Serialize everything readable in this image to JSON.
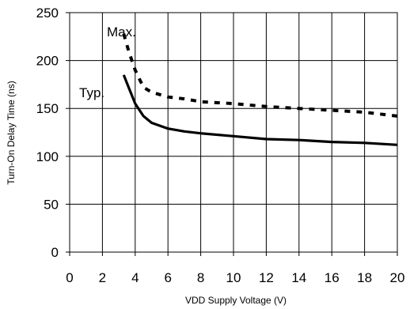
{
  "chart_data": {
    "type": "line",
    "xlabel": "VDD Supply Voltage (V)",
    "ylabel": "Turn-On Delay Time (ns)",
    "xlim": [
      0,
      20
    ],
    "ylim": [
      0,
      250
    ],
    "x_ticks": [
      "0",
      "2",
      "4",
      "6",
      "8",
      "10",
      "12",
      "14",
      "16",
      "18",
      "20"
    ],
    "y_ticks": [
      "0",
      "50",
      "100",
      "150",
      "200",
      "250"
    ],
    "grid": true,
    "legend": "none",
    "annotations": [
      "Max.",
      "Typ."
    ],
    "series": [
      {
        "name": "Max.",
        "style": "dashed",
        "x": [
          3.3,
          3.6,
          4.0,
          4.5,
          5.0,
          6.0,
          7.0,
          8.0,
          10.0,
          12.0,
          14.0,
          16.0,
          18.0,
          20.0
        ],
        "y": [
          228,
          210,
          190,
          172,
          167,
          162,
          160,
          157,
          155,
          152,
          150,
          148,
          146,
          142
        ]
      },
      {
        "name": "Typ.",
        "style": "solid",
        "x": [
          3.3,
          3.6,
          4.0,
          4.5,
          5.0,
          6.0,
          7.0,
          8.0,
          10.0,
          12.0,
          14.0,
          16.0,
          18.0,
          20.0
        ],
        "y": [
          185,
          172,
          155,
          142,
          135,
          129,
          126,
          124,
          121,
          118,
          117,
          115,
          114,
          112
        ]
      }
    ]
  }
}
